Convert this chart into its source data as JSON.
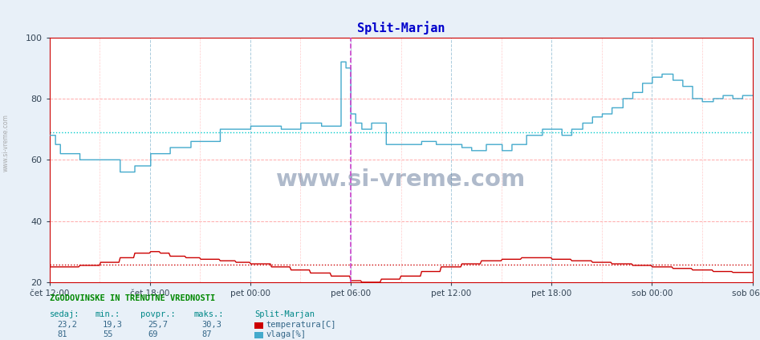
{
  "title": "Split-Marjan",
  "title_color": "#0000cc",
  "bg_color": "#e8f0f8",
  "plot_bg_color": "#ffffff",
  "temp_color": "#cc0000",
  "humid_color": "#44aacc",
  "avg_temp_color": "#cc0000",
  "avg_humid_color": "#00cccc",
  "x_tick_labels": [
    "čet 12:00",
    "čet 18:00",
    "pet 00:00",
    "pet 06:00",
    "pet 12:00",
    "pet 18:00",
    "sob 00:00",
    "sob 06:00"
  ],
  "ylim": [
    20,
    100
  ],
  "yticks": [
    20,
    40,
    60,
    80,
    100
  ],
  "avg_temp": 25.7,
  "avg_humid": 69,
  "min_temp": 19.3,
  "max_temp": 30.3,
  "cur_temp": 23.2,
  "min_humid": 55,
  "max_humid": 87,
  "cur_humid": 81,
  "watermark": "www.si-vreme.com",
  "watermark_color": "#1a3a6a",
  "bottom_title": "ZGODOVINSKE IN TRENUTNE VREDNOSTI",
  "bottom_headers": [
    "sedaj:",
    "min.:",
    "povpr.:",
    "maks.:",
    "Split-Marjan"
  ],
  "legend_temp": "temperatura[C]",
  "legend_humid": "vlaga[%]",
  "vertical_line_color": "#cc44cc",
  "border_color": "#cc0000",
  "grid_h_color": "#ffaaaa",
  "grid_v_major_color": "#aaccdd",
  "grid_v_minor_color": "#ffcccc"
}
